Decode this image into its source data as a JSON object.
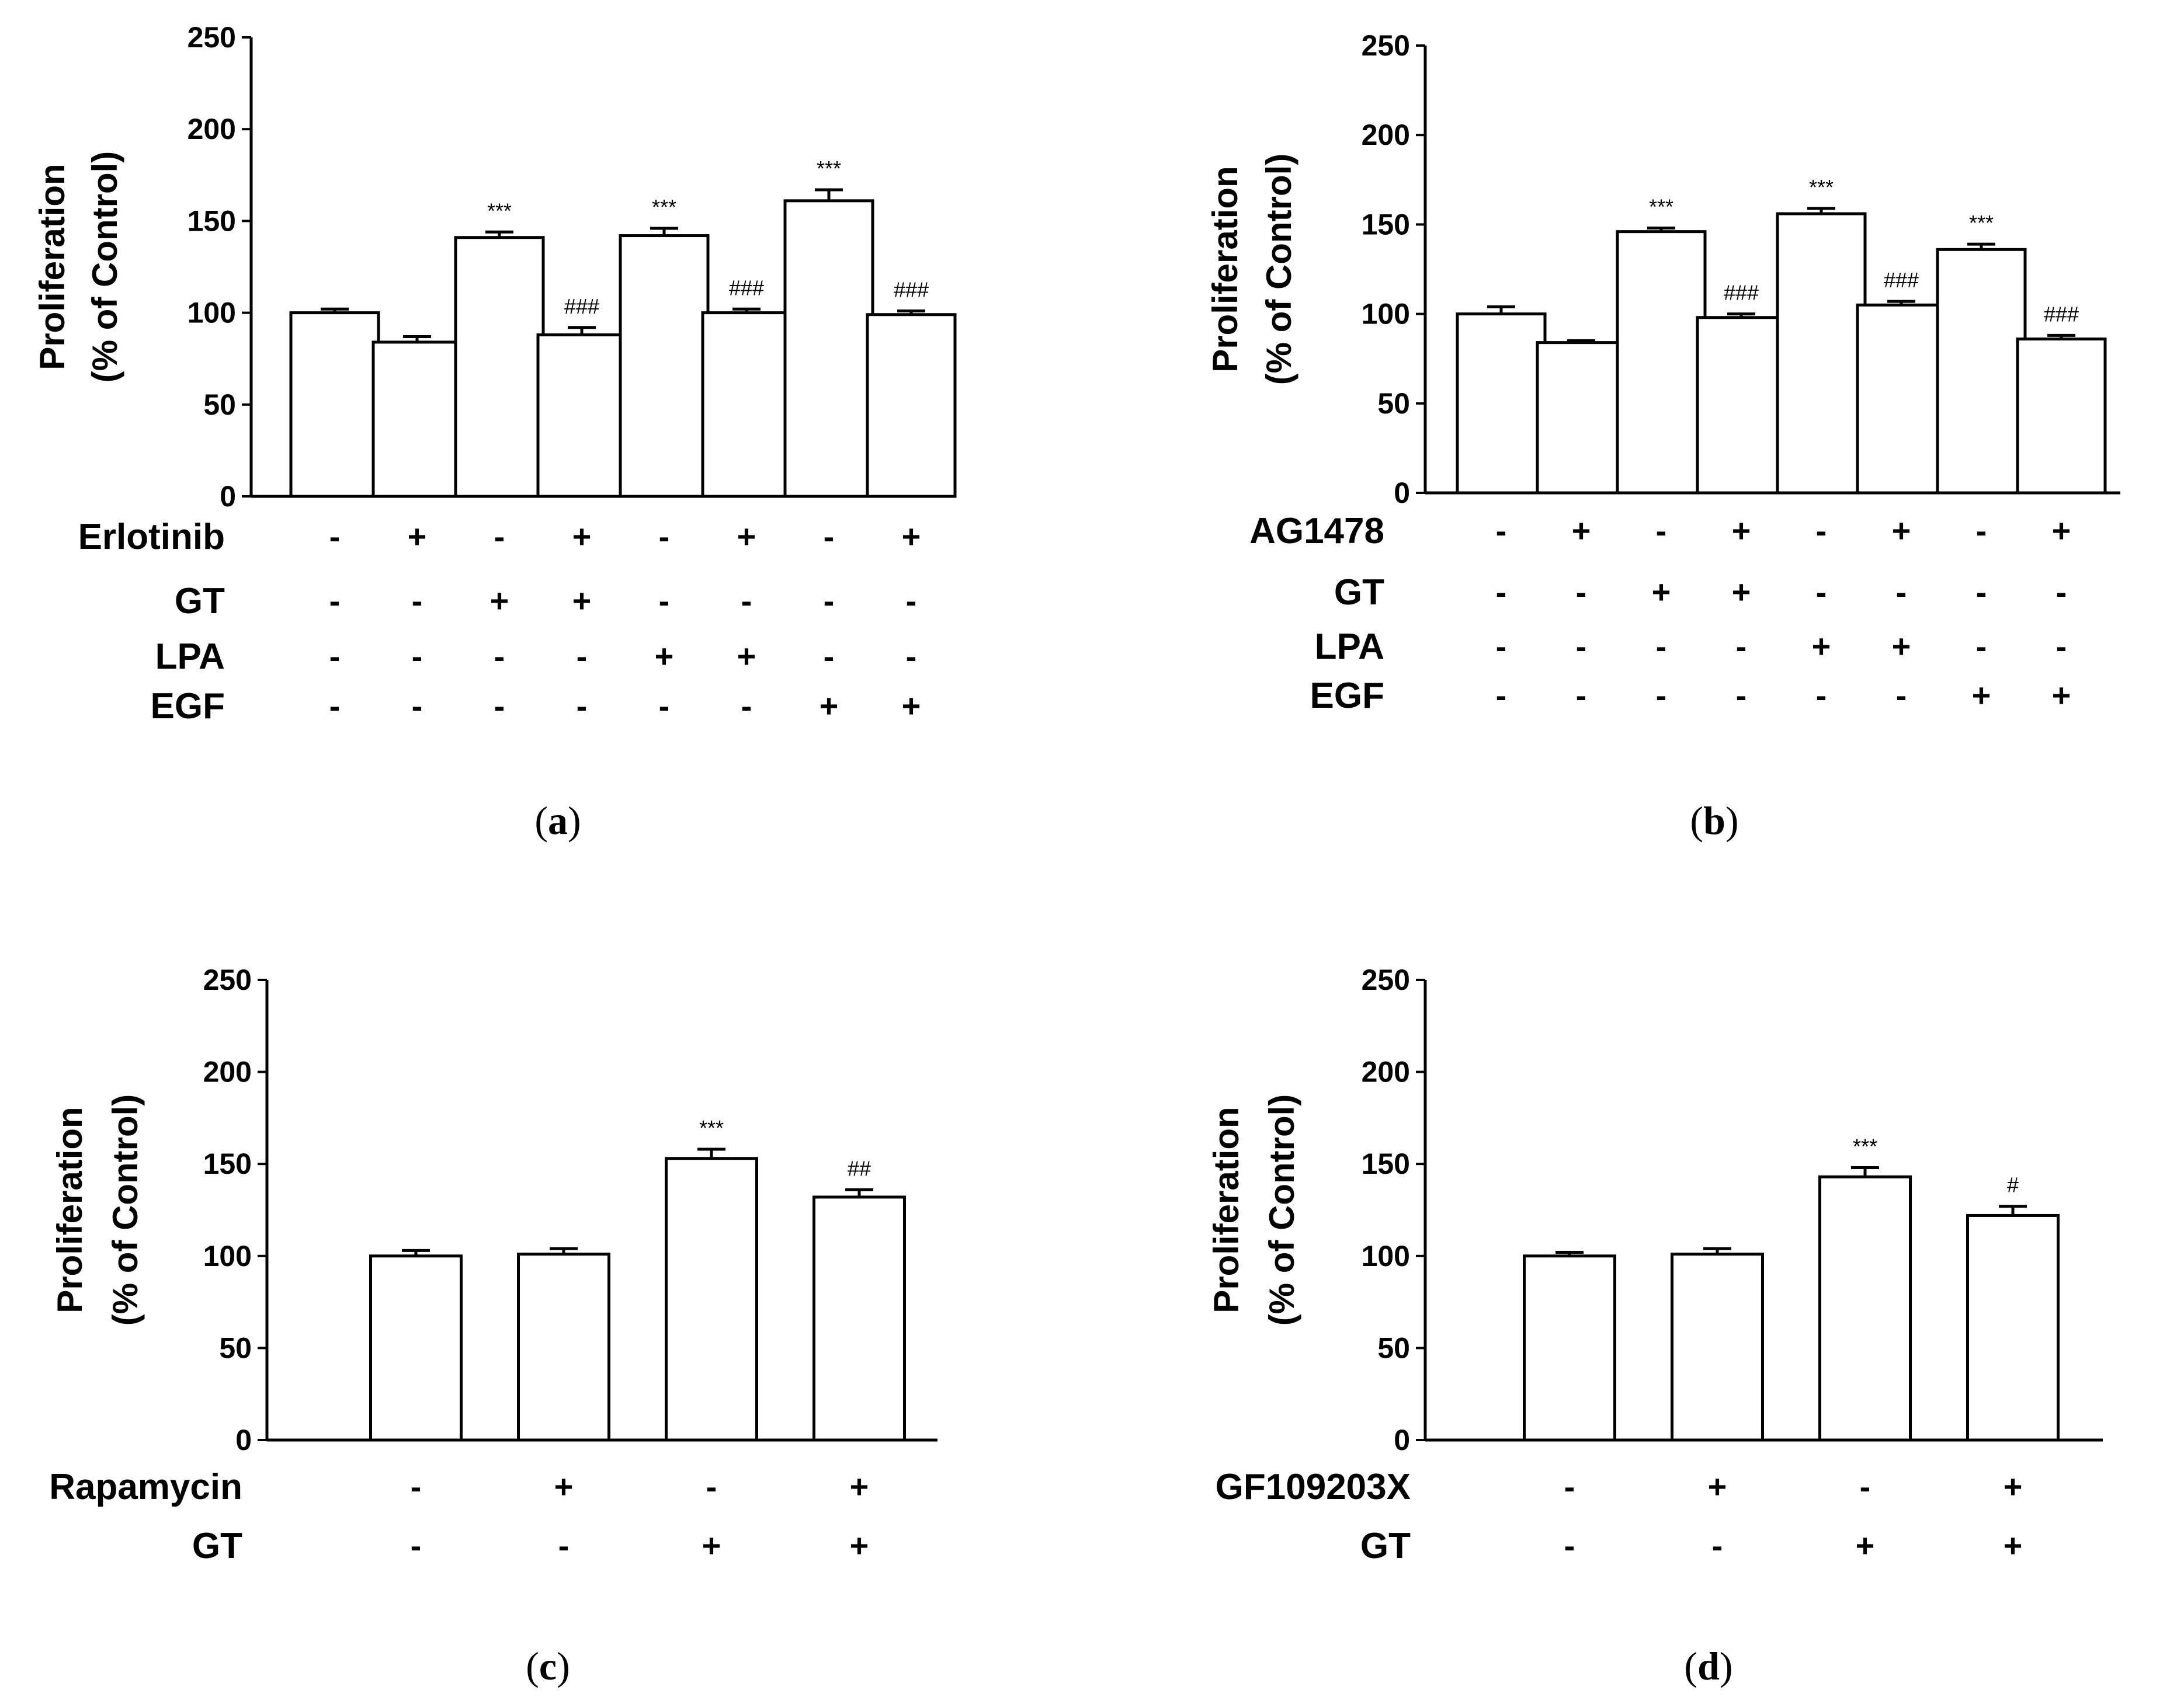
{
  "chart_data": [
    {
      "type": "bar",
      "panel": "a",
      "ylabel": [
        "Proliferation",
        "(% of Control)"
      ],
      "ylim": [
        0,
        250
      ],
      "yticks": [
        "0",
        "50",
        "100",
        "150",
        "200",
        "250"
      ],
      "values": [
        100,
        84,
        141,
        88,
        142,
        100,
        161,
        99
      ],
      "errors": [
        2,
        3,
        3,
        4,
        4,
        2,
        6,
        2
      ],
      "annotations": [
        "",
        "",
        "***",
        "###",
        "***",
        "###",
        "***",
        "###"
      ],
      "conditions": [
        {
          "label": "Erlotinib",
          "signs": [
            "-",
            "+",
            "-",
            "+",
            "-",
            "+",
            "-",
            "+"
          ]
        },
        {
          "label": "GT",
          "signs": [
            "-",
            "-",
            "+",
            "+",
            "-",
            "-",
            "-",
            "-"
          ]
        },
        {
          "label": "LPA",
          "signs": [
            "-",
            "-",
            "-",
            "-",
            "+",
            "+",
            "-",
            "-"
          ]
        },
        {
          "label": "EGF",
          "signs": [
            "-",
            "-",
            "-",
            "-",
            "-",
            "-",
            "+",
            "+"
          ]
        }
      ]
    },
    {
      "type": "bar",
      "panel": "b",
      "ylabel": [
        "Proliferation",
        "(% of Control)"
      ],
      "ylim": [
        0,
        250
      ],
      "yticks": [
        "0",
        "50",
        "100",
        "150",
        "200",
        "250"
      ],
      "values": [
        100,
        84,
        146,
        98,
        156,
        105,
        136,
        86
      ],
      "errors": [
        4,
        1,
        2,
        2,
        3,
        2,
        3,
        2
      ],
      "annotations": [
        "",
        "",
        "***",
        "###",
        "***",
        "###",
        "***",
        "###"
      ],
      "conditions": [
        {
          "label": "AG1478",
          "signs": [
            "-",
            "+",
            "-",
            "+",
            "-",
            "+",
            "-",
            "+"
          ]
        },
        {
          "label": "GT",
          "signs": [
            "-",
            "-",
            "+",
            "+",
            "-",
            "-",
            "-",
            "-"
          ]
        },
        {
          "label": "LPA",
          "signs": [
            "-",
            "-",
            "-",
            "-",
            "+",
            "+",
            "-",
            "-"
          ]
        },
        {
          "label": "EGF",
          "signs": [
            "-",
            "-",
            "-",
            "-",
            "-",
            "-",
            "+",
            "+"
          ]
        }
      ]
    },
    {
      "type": "bar",
      "panel": "c",
      "ylabel": [
        "Proliferation",
        "(% of Control)"
      ],
      "ylim": [
        0,
        250
      ],
      "yticks": [
        "0",
        "50",
        "100",
        "150",
        "200",
        "250"
      ],
      "values": [
        100,
        101,
        153,
        132
      ],
      "errors": [
        3,
        3,
        5,
        4
      ],
      "annotations": [
        "",
        "",
        "***",
        "##"
      ],
      "conditions": [
        {
          "label": "Rapamycin",
          "signs": [
            "-",
            "+",
            "-",
            "+"
          ]
        },
        {
          "label": "GT",
          "signs": [
            "-",
            "-",
            "+",
            "+"
          ]
        }
      ]
    },
    {
      "type": "bar",
      "panel": "d",
      "ylabel": [
        "Proliferation",
        "(% of Control)"
      ],
      "ylim": [
        0,
        250
      ],
      "yticks": [
        "0",
        "50",
        "100",
        "150",
        "200",
        "250"
      ],
      "values": [
        100,
        101,
        143,
        122
      ],
      "errors": [
        2,
        3,
        5,
        5
      ],
      "annotations": [
        "",
        "",
        "***",
        "#"
      ],
      "conditions": [
        {
          "label": "GF109203X",
          "signs": [
            "-",
            "+",
            "-",
            "+"
          ]
        },
        {
          "label": "GT",
          "signs": [
            "-",
            "-",
            "+",
            "+"
          ]
        }
      ]
    }
  ],
  "captions": [
    {
      "open": "(",
      "letter": "a",
      "close": ")"
    },
    {
      "open": "(",
      "letter": "b",
      "close": ")"
    },
    {
      "open": "(",
      "letter": "c",
      "close": ")"
    },
    {
      "open": "(",
      "letter": "d",
      "close": ")"
    }
  ]
}
